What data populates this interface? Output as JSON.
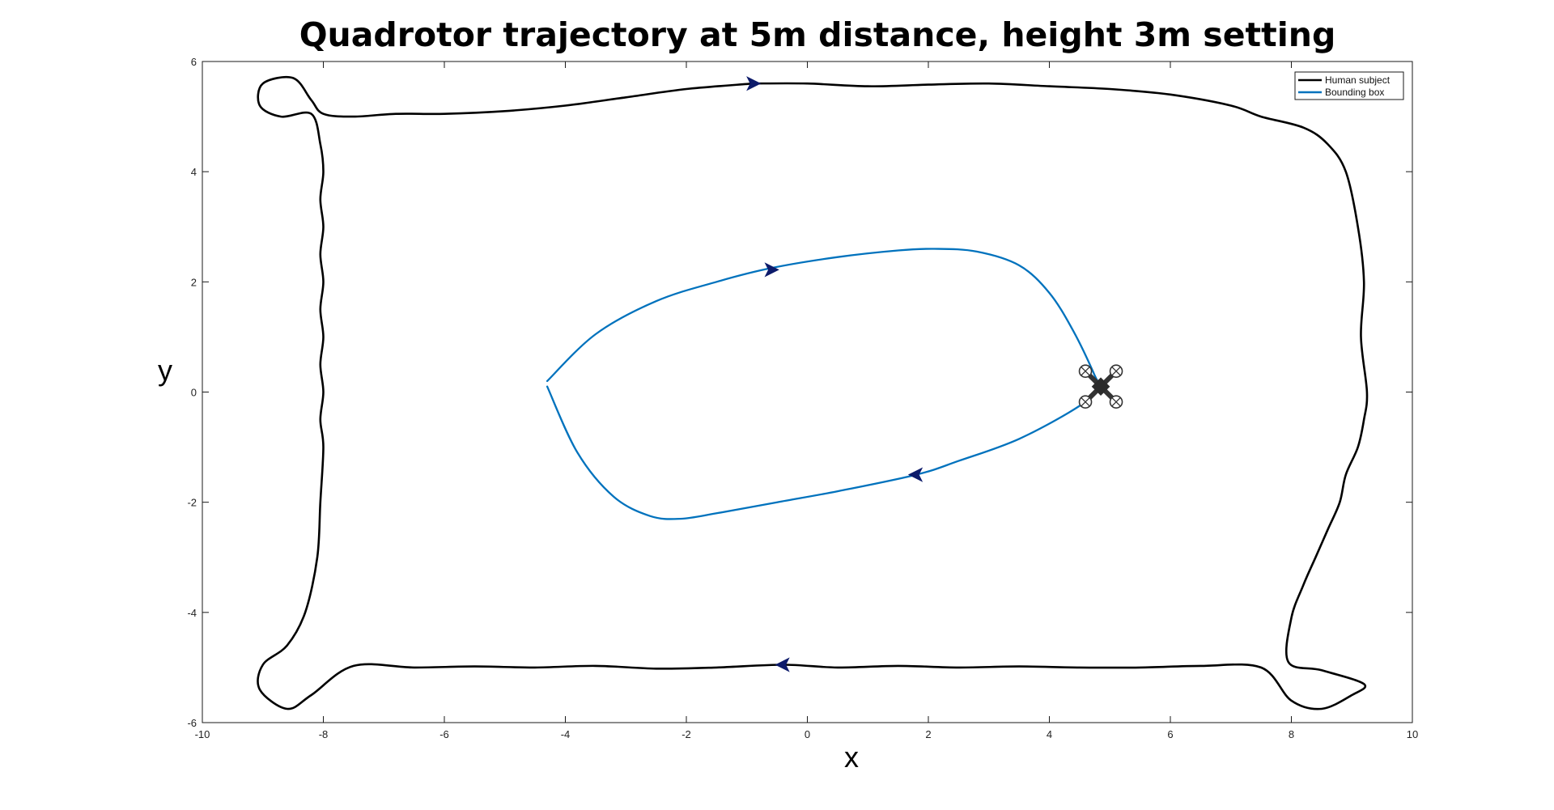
{
  "chart_data": {
    "type": "line",
    "title": "Quadrotor trajectory at 5m distance, height 3m setting",
    "xlabel": "x",
    "ylabel": "y",
    "xlim": [
      -10,
      10
    ],
    "ylim": [
      -6,
      6
    ],
    "xticks": [
      -10,
      -8,
      -6,
      -4,
      -2,
      0,
      2,
      4,
      6,
      8,
      10
    ],
    "yticks": [
      -6,
      -4,
      -2,
      0,
      2,
      4,
      6
    ],
    "grid": false,
    "legend_position": "top-right",
    "series": [
      {
        "name": "Human subject",
        "color": "#000000",
        "x": [
          -0.9,
          -2.0,
          -3.0,
          -4.0,
          -5.0,
          -6.0,
          -6.8,
          -7.5,
          -8.0,
          -8.2,
          -8.5,
          -9.0,
          -9.05,
          -8.7,
          -8.2,
          -8.05,
          -8.0,
          -8.05,
          -8.0,
          -8.05,
          -8.0,
          -8.05,
          -8.0,
          -8.05,
          -8.0,
          -8.05,
          -8.0,
          -8.05,
          -8.1,
          -8.3,
          -8.6,
          -9.0,
          -9.05,
          -8.6,
          -8.2,
          -7.5,
          -6.5,
          -5.5,
          -4.5,
          -3.5,
          -2.5,
          -1.5,
          -0.4,
          0.5,
          1.5,
          2.5,
          3.5,
          4.5,
          5.5,
          6.5,
          7.5,
          8.0,
          8.5,
          9.0,
          9.2,
          8.5,
          7.95,
          8.0,
          8.2,
          8.4,
          8.6,
          8.8,
          8.9,
          9.1,
          9.2,
          9.25,
          9.15,
          9.2,
          9.1,
          8.9,
          8.6,
          8.2,
          7.5,
          7.0,
          6.0,
          5.0,
          4.0,
          3.0,
          2.0,
          1.0,
          0.0,
          -0.9
        ],
        "y": [
          5.6,
          5.5,
          5.35,
          5.2,
          5.1,
          5.05,
          5.05,
          5.0,
          5.05,
          5.3,
          5.7,
          5.6,
          5.2,
          5.0,
          5.05,
          4.5,
          4.0,
          3.5,
          3.0,
          2.5,
          2.0,
          1.5,
          1.0,
          0.5,
          0.0,
          -0.5,
          -1.0,
          -2.0,
          -3.0,
          -4.0,
          -4.6,
          -4.95,
          -5.4,
          -5.75,
          -5.5,
          -4.97,
          -5.0,
          -4.98,
          -5.0,
          -4.97,
          -5.02,
          -5.0,
          -4.95,
          -5.0,
          -4.97,
          -5.0,
          -4.98,
          -5.0,
          -5.0,
          -4.97,
          -5.0,
          -5.6,
          -5.75,
          -5.5,
          -5.3,
          -5.05,
          -4.9,
          -4.1,
          -3.5,
          -3.0,
          -2.5,
          -2.0,
          -1.5,
          -1.0,
          -0.5,
          0.0,
          1.0,
          2.0,
          3.0,
          4.0,
          4.5,
          4.8,
          5.0,
          5.2,
          5.4,
          5.5,
          5.55,
          5.6,
          5.58,
          5.55,
          5.6,
          5.6
        ]
      },
      {
        "name": "Bounding box",
        "color": "#0072BD",
        "x": [
          -4.3,
          -3.5,
          -2.5,
          -1.5,
          -0.6,
          0.5,
          1.5,
          2.1,
          2.8,
          3.5,
          4.0,
          4.4,
          4.75,
          4.8,
          4.5,
          3.5,
          2.5,
          1.8,
          0.5,
          -0.5,
          -1.5,
          -2.1,
          -2.6,
          -3.2,
          -3.8,
          -4.3
        ],
        "y": [
          0.2,
          1.05,
          1.65,
          2.0,
          2.25,
          2.45,
          2.57,
          2.6,
          2.55,
          2.3,
          1.8,
          1.1,
          0.3,
          0.1,
          -0.25,
          -0.85,
          -1.25,
          -1.5,
          -1.8,
          -2.0,
          -2.2,
          -2.3,
          -2.25,
          -1.9,
          -1.1,
          0.1
        ]
      }
    ],
    "arrows": [
      {
        "x": -0.9,
        "y": 5.6,
        "direction": "right"
      },
      {
        "x": -0.6,
        "y": 2.22,
        "direction": "right"
      },
      {
        "x": 1.8,
        "y": -1.5,
        "direction": "left"
      },
      {
        "x": -0.4,
        "y": -4.95,
        "direction": "left"
      }
    ],
    "quadrotor": {
      "x": 4.85,
      "y": 0.1,
      "icon": "quadrotor-icon"
    }
  }
}
